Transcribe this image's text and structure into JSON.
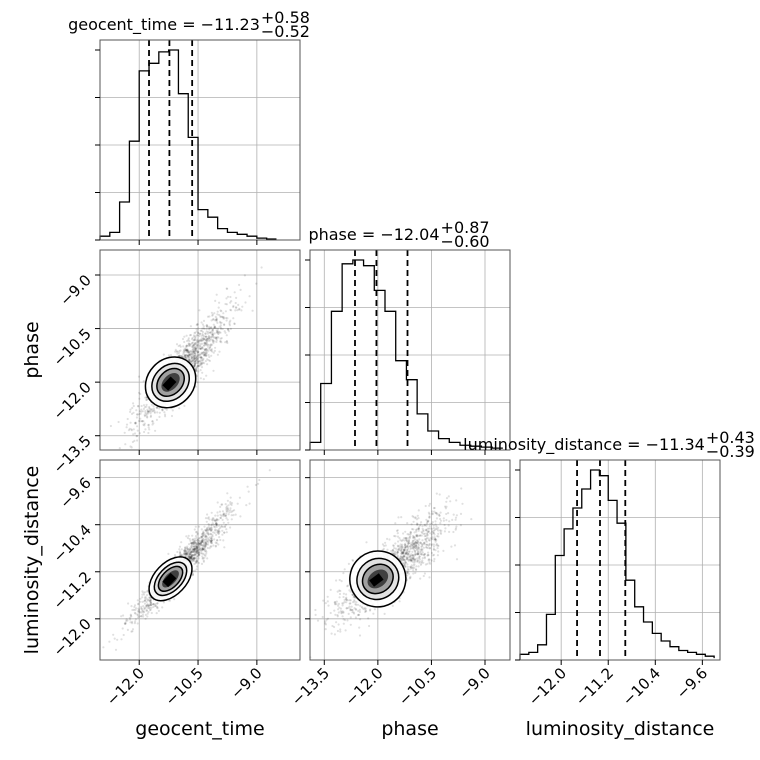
{
  "chart_data": {
    "type": "corner",
    "params": [
      "geocent_time",
      "phase",
      "luminosity_distance"
    ],
    "titles": [
      {
        "param": "geocent_time",
        "label": "geocent_time = −11.23",
        "median": -11.23,
        "plus": "+0.58",
        "minus": "−0.52"
      },
      {
        "param": "phase",
        "label": "phase = −12.04",
        "median": -12.04,
        "plus": "+0.87",
        "minus": "−0.60"
      },
      {
        "param": "luminosity_distance",
        "label": "luminosity_distance = −11.34",
        "median": -11.34,
        "plus": "+0.43",
        "minus": "−0.39"
      }
    ],
    "ranges": {
      "geocent_time": [
        -13.0,
        -7.9
      ],
      "phase": [
        -13.9,
        -8.3
      ],
      "luminosity_distance": [
        -12.7,
        -9.3
      ]
    },
    "ticks": {
      "geocent_time": [
        -12.0,
        -10.5,
        -9.0
      ],
      "phase": [
        -13.5,
        -12.0,
        -10.5,
        -9.0
      ],
      "luminosity_distance": [
        -12.0,
        -11.2,
        -10.4,
        -9.6
      ]
    },
    "tick_labels": {
      "geocent_time": [
        "−12.0",
        "−10.5",
        "−9.0"
      ],
      "phase": [
        "−13.5",
        "−12.0",
        "−10.5",
        "−9.0"
      ],
      "luminosity_distance": [
        "−12.0",
        "−11.2",
        "−10.4",
        "−9.6"
      ],
      "phase_y": [
        "−9.0",
        "−10.5",
        "−12.0",
        "−13.5"
      ],
      "luminosity_distance_y": [
        "−9.6",
        "−10.4",
        "−11.2",
        "−12.0"
      ]
    },
    "quantiles": {
      "geocent_time": [
        -11.75,
        -11.23,
        -10.65
      ],
      "phase": [
        -12.64,
        -12.04,
        -11.17
      ],
      "luminosity_distance": [
        -11.73,
        -11.34,
        -10.91
      ]
    },
    "histograms": {
      "geocent_time": {
        "edges": [
          -13.0,
          -12.75,
          -12.5,
          -12.25,
          -12.0,
          -11.75,
          -11.5,
          -11.25,
          -11.0,
          -10.75,
          -10.5,
          -10.25,
          -10.0,
          -9.75,
          -9.5,
          -9.25,
          -9.0,
          -8.75,
          -8.5
        ],
        "counts": [
          0.02,
          0.04,
          0.2,
          0.52,
          0.89,
          0.93,
          0.99,
          1.0,
          0.77,
          0.54,
          0.16,
          0.12,
          0.06,
          0.04,
          0.03,
          0.02,
          0.01,
          0.005
        ]
      },
      "phase": {
        "edges": [
          -13.9,
          -13.6,
          -13.3,
          -13.0,
          -12.7,
          -12.4,
          -12.1,
          -11.8,
          -11.5,
          -11.2,
          -10.9,
          -10.6,
          -10.3,
          -10.0,
          -9.7,
          -9.4,
          -9.1,
          -8.8,
          -8.5
        ],
        "counts": [
          0.04,
          0.35,
          0.73,
          0.98,
          1.0,
          0.97,
          0.84,
          0.73,
          0.47,
          0.37,
          0.19,
          0.1,
          0.06,
          0.04,
          0.025,
          0.02,
          0.015,
          0.01
        ]
      },
      "luminosity_distance": {
        "edges": [
          -12.7,
          -12.55,
          -12.4,
          -12.25,
          -12.1,
          -11.95,
          -11.8,
          -11.65,
          -11.5,
          -11.35,
          -11.2,
          -11.05,
          -10.9,
          -10.75,
          -10.6,
          -10.45,
          -10.3,
          -10.15,
          -10.0,
          -9.85,
          -9.7,
          -9.55,
          -9.4
        ],
        "counts": [
          0.03,
          0.04,
          0.08,
          0.24,
          0.55,
          0.69,
          0.8,
          0.9,
          1.0,
          0.97,
          0.84,
          0.72,
          0.42,
          0.28,
          0.2,
          0.14,
          0.1,
          0.07,
          0.05,
          0.04,
          0.03,
          0.02,
          0.01
        ]
      }
    },
    "correlations": {
      "phase|geocent_time": 0.87,
      "luminosity_distance|geocent_time": 0.94,
      "luminosity_distance|phase": 0.82
    },
    "axis_labels": [
      "geocent_time",
      "phase",
      "luminosity_distance"
    ],
    "grid": true
  }
}
